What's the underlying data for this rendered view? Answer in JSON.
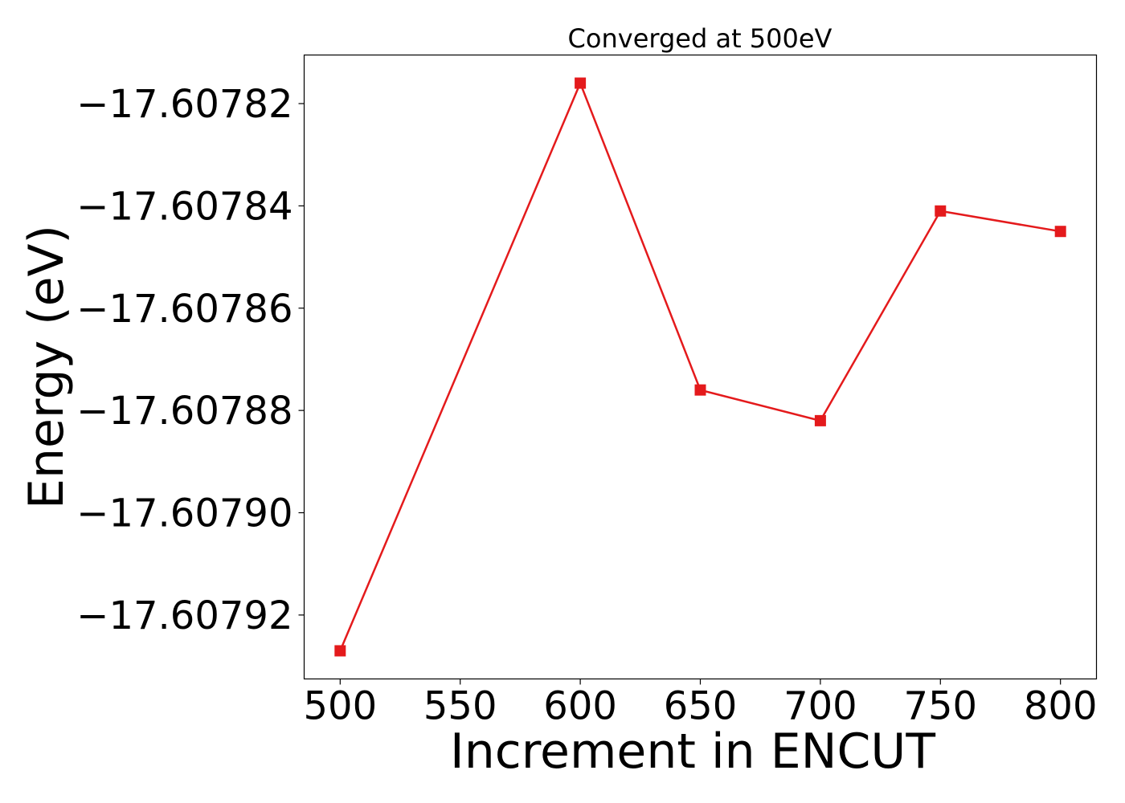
{
  "chart_data": {
    "type": "line",
    "title": "Converged at 500eV",
    "xlabel": "Increment in ENCUT",
    "ylabel": "Energy (eV)",
    "x": [
      500,
      600,
      650,
      700,
      750,
      800
    ],
    "series": [
      {
        "values": [
          -17.607927,
          -17.607816,
          -17.607876,
          -17.607882,
          -17.607841,
          -17.607845
        ],
        "color": "#e41a1c",
        "marker": "square"
      }
    ],
    "xticks": [
      500,
      550,
      600,
      650,
      700,
      750,
      800
    ],
    "xtick_labels": [
      "500",
      "550",
      "600",
      "650",
      "700",
      "750",
      "800"
    ],
    "yticks": [
      -17.60792,
      -17.6079,
      -17.60788,
      -17.60786,
      -17.60784,
      -17.60782
    ],
    "ytick_labels": [
      "−17.60792",
      "−17.60790",
      "−17.60788",
      "−17.60786",
      "−17.60784",
      "−17.60782"
    ],
    "xlim": [
      485,
      815
    ],
    "ylim": [
      -17.6079325,
      -17.6078105
    ],
    "grid": false,
    "legend": "none"
  }
}
